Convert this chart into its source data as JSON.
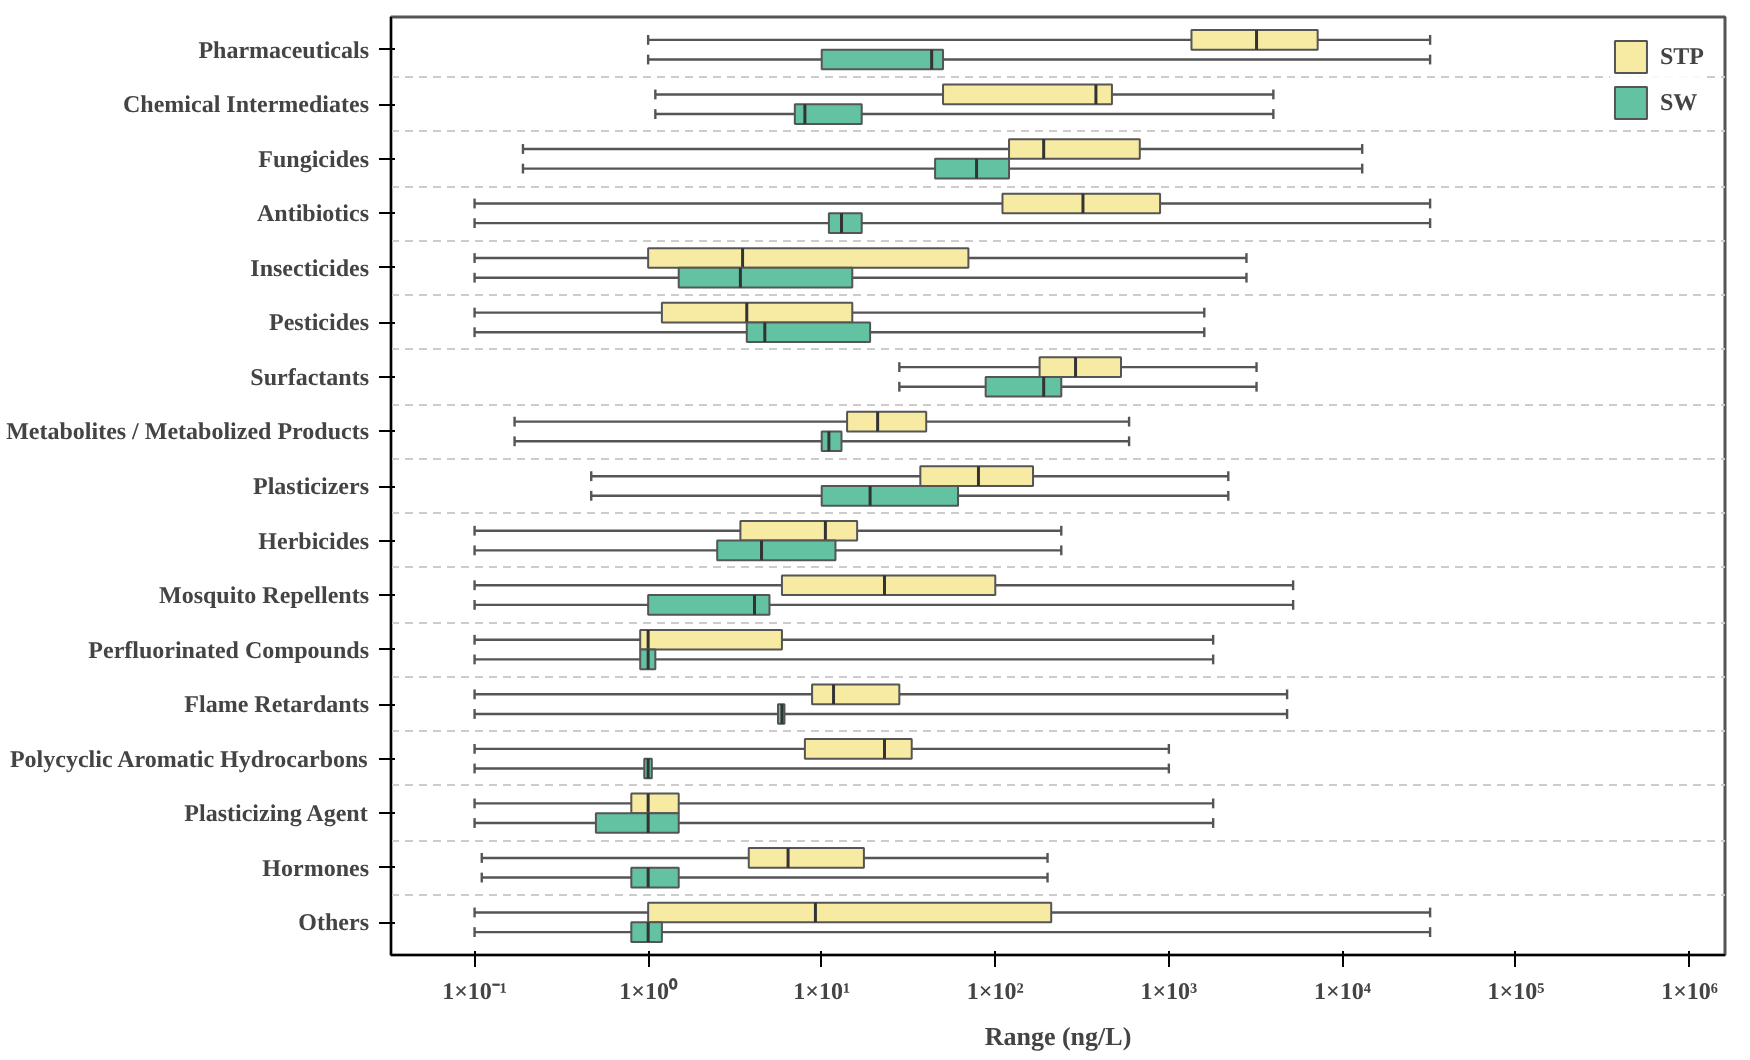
{
  "chart_data": {
    "type": "box",
    "orientation": "horizontal",
    "log": "x",
    "xlabel": "Range (ng/L)",
    "categories": [
      "Pharmaceuticals",
      "Chemical Intermediates",
      "Fungicides",
      "Antibiotics",
      "Insecticides",
      "Pesticides",
      "Surfactants",
      "Metabolites / Metabolized Products",
      "Plasticizers",
      "Herbicides",
      "Mosquito Repellents",
      "Perfluorinated Compounds",
      "Flame Retardants",
      "Polycyclic Aromatic Hydrocarbons",
      "Plasticizing Agent",
      "Hormones",
      "Others"
    ],
    "xlim": [
      0.033,
      1600000
    ],
    "xticks": [
      {
        "value": 0.1,
        "label": "1×10⁻¹"
      },
      {
        "value": 1,
        "label": "1×10⁰"
      },
      {
        "value": 10,
        "label": "1×10¹"
      },
      {
        "value": 100,
        "label": "1×10²"
      },
      {
        "value": 1000,
        "label": "1×10³"
      },
      {
        "value": 10000,
        "label": "1×10⁴"
      },
      {
        "value": 100000,
        "label": "1×10⁵"
      },
      {
        "value": 1000000,
        "label": "1×10⁶"
      }
    ],
    "grid": "y",
    "legend": "top right",
    "series": [
      {
        "name": "STP",
        "color": "#f7eaa2",
        "boxes": [
          {
            "low": 1.0,
            "q1": 1350,
            "median": 3200,
            "q3": 7200,
            "high": 32000
          },
          {
            "low": 1.1,
            "q1": 50,
            "median": 380,
            "q3": 470,
            "high": 4000
          },
          {
            "low": 0.19,
            "q1": 120,
            "median": 190,
            "q3": 680,
            "high": 13000
          },
          {
            "low": 0.1,
            "q1": 110,
            "median": 320,
            "q3": 890,
            "high": 32000
          },
          {
            "low": 0.1,
            "q1": 1.0,
            "median": 3.5,
            "q3": 70,
            "high": 2800
          },
          {
            "low": 0.1,
            "q1": 1.2,
            "median": 3.7,
            "q3": 15,
            "high": 1600
          },
          {
            "low": 28,
            "q1": 180,
            "median": 290,
            "q3": 530,
            "high": 3200
          },
          {
            "low": 0.17,
            "q1": 14,
            "median": 21,
            "q3": 40,
            "high": 590
          },
          {
            "low": 0.47,
            "q1": 37,
            "median": 80,
            "q3": 165,
            "high": 2200
          },
          {
            "low": 0.1,
            "q1": 3.4,
            "median": 10.5,
            "q3": 16,
            "high": 240
          },
          {
            "low": 0.1,
            "q1": 5.9,
            "median": 23,
            "q3": 100,
            "high": 5200
          },
          {
            "low": 0.1,
            "q1": 0.9,
            "median": 1.0,
            "q3": 5.9,
            "high": 1800
          },
          {
            "low": 0.1,
            "q1": 8.8,
            "median": 11.7,
            "q3": 28,
            "high": 4800
          },
          {
            "low": 0.1,
            "q1": 8,
            "median": 23,
            "q3": 33,
            "high": 1000
          },
          {
            "low": 0.1,
            "q1": 0.8,
            "median": 1.0,
            "q3": 1.5,
            "high": 1800
          },
          {
            "low": 0.11,
            "q1": 3.8,
            "median": 6.4,
            "q3": 17.5,
            "high": 200
          },
          {
            "low": 0.1,
            "q1": 1.0,
            "median": 9.2,
            "q3": 210,
            "high": 32000
          }
        ]
      },
      {
        "name": "SW",
        "color": "#62c2a2",
        "boxes": [
          {
            "low": 1.0,
            "q1": 10,
            "median": 43,
            "q3": 50,
            "high": 32000
          },
          {
            "low": 1.1,
            "q1": 7,
            "median": 8,
            "q3": 17,
            "high": 4000
          },
          {
            "low": 0.19,
            "q1": 45,
            "median": 78,
            "q3": 120,
            "high": 13000
          },
          {
            "low": 0.1,
            "q1": 11,
            "median": 13,
            "q3": 17,
            "high": 32000
          },
          {
            "low": 0.1,
            "q1": 1.5,
            "median": 3.4,
            "q3": 15,
            "high": 2800
          },
          {
            "low": 0.1,
            "q1": 3.7,
            "median": 4.7,
            "q3": 19,
            "high": 1600
          },
          {
            "low": 28,
            "q1": 88,
            "median": 190,
            "q3": 240,
            "high": 3200
          },
          {
            "low": 0.17,
            "q1": 10,
            "median": 11,
            "q3": 13,
            "high": 590
          },
          {
            "low": 0.47,
            "q1": 10,
            "median": 19,
            "q3": 61,
            "high": 2200
          },
          {
            "low": 0.1,
            "q1": 2.5,
            "median": 4.5,
            "q3": 12,
            "high": 240
          },
          {
            "low": 0.1,
            "q1": 1.0,
            "median": 4.1,
            "q3": 5,
            "high": 5200
          },
          {
            "low": 0.1,
            "q1": 0.9,
            "median": 1.0,
            "q3": 1.1,
            "high": 1800
          },
          {
            "low": 0.1,
            "q1": 5.6,
            "median": 5.9,
            "q3": 6.1,
            "high": 4800
          },
          {
            "low": 0.1,
            "q1": 0.95,
            "median": 1.0,
            "q3": 1.05,
            "high": 1000
          },
          {
            "low": 0.1,
            "q1": 0.5,
            "median": 1.0,
            "q3": 1.5,
            "high": 1800
          },
          {
            "low": 0.11,
            "q1": 0.8,
            "median": 1.0,
            "q3": 1.5,
            "high": 200
          },
          {
            "low": 0.1,
            "q1": 0.8,
            "median": 1.0,
            "q3": 1.2,
            "high": 32000
          }
        ]
      }
    ]
  }
}
